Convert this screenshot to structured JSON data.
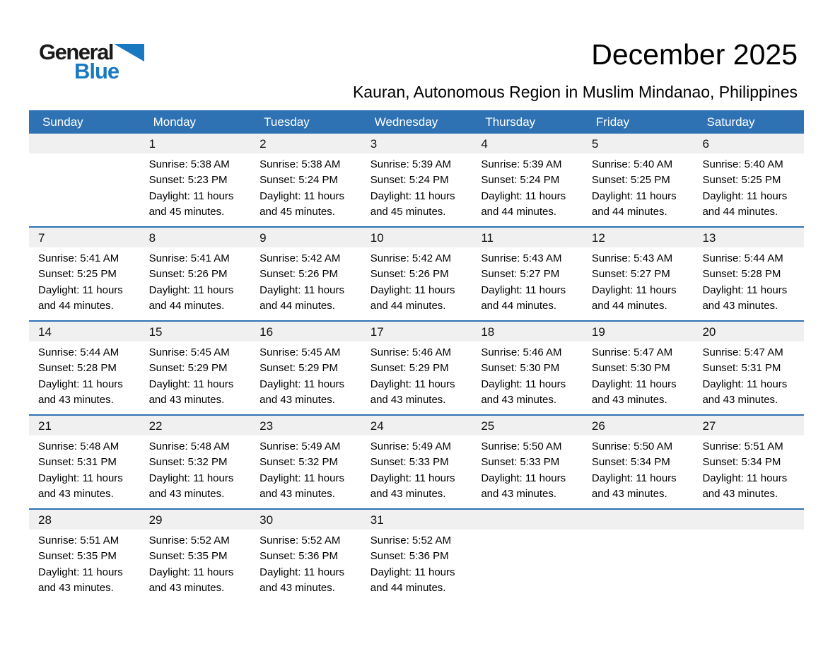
{
  "logo": {
    "text_general": "General",
    "text_blue": "Blue",
    "triangle_icon": "blue-right-triangle"
  },
  "header": {
    "title": "December 2025",
    "subtitle": "Kauran, Autonomous Region in Muslim Mindanao, Philippines"
  },
  "colors": {
    "header_blue": "#2E72B4",
    "row_separator_blue": "#2E72B4",
    "day_band_gray": "#F0F0F0",
    "logo_blue": "#1878C2",
    "logo_dark": "#1A1A1A",
    "header_text": "#FFFFFF",
    "body_text": "#000000"
  },
  "calendar": {
    "day_headers": [
      "Sunday",
      "Monday",
      "Tuesday",
      "Wednesday",
      "Thursday",
      "Friday",
      "Saturday"
    ],
    "weeks": [
      {
        "days": [
          {
            "date": "",
            "lines": []
          },
          {
            "date": "1",
            "lines": [
              "Sunrise: 5:38 AM",
              "Sunset: 5:23 PM",
              "Daylight: 11 hours",
              "and 45 minutes."
            ]
          },
          {
            "date": "2",
            "lines": [
              "Sunrise: 5:38 AM",
              "Sunset: 5:24 PM",
              "Daylight: 11 hours",
              "and 45 minutes."
            ]
          },
          {
            "date": "3",
            "lines": [
              "Sunrise: 5:39 AM",
              "Sunset: 5:24 PM",
              "Daylight: 11 hours",
              "and 45 minutes."
            ]
          },
          {
            "date": "4",
            "lines": [
              "Sunrise: 5:39 AM",
              "Sunset: 5:24 PM",
              "Daylight: 11 hours",
              "and 44 minutes."
            ]
          },
          {
            "date": "5",
            "lines": [
              "Sunrise: 5:40 AM",
              "Sunset: 5:25 PM",
              "Daylight: 11 hours",
              "and 44 minutes."
            ]
          },
          {
            "date": "6",
            "lines": [
              "Sunrise: 5:40 AM",
              "Sunset: 5:25 PM",
              "Daylight: 11 hours",
              "and 44 minutes."
            ]
          }
        ]
      },
      {
        "days": [
          {
            "date": "7",
            "lines": [
              "Sunrise: 5:41 AM",
              "Sunset: 5:25 PM",
              "Daylight: 11 hours",
              "and 44 minutes."
            ]
          },
          {
            "date": "8",
            "lines": [
              "Sunrise: 5:41 AM",
              "Sunset: 5:26 PM",
              "Daylight: 11 hours",
              "and 44 minutes."
            ]
          },
          {
            "date": "9",
            "lines": [
              "Sunrise: 5:42 AM",
              "Sunset: 5:26 PM",
              "Daylight: 11 hours",
              "and 44 minutes."
            ]
          },
          {
            "date": "10",
            "lines": [
              "Sunrise: 5:42 AM",
              "Sunset: 5:26 PM",
              "Daylight: 11 hours",
              "and 44 minutes."
            ]
          },
          {
            "date": "11",
            "lines": [
              "Sunrise: 5:43 AM",
              "Sunset: 5:27 PM",
              "Daylight: 11 hours",
              "and 44 minutes."
            ]
          },
          {
            "date": "12",
            "lines": [
              "Sunrise: 5:43 AM",
              "Sunset: 5:27 PM",
              "Daylight: 11 hours",
              "and 44 minutes."
            ]
          },
          {
            "date": "13",
            "lines": [
              "Sunrise: 5:44 AM",
              "Sunset: 5:28 PM",
              "Daylight: 11 hours",
              "and 43 minutes."
            ]
          }
        ]
      },
      {
        "days": [
          {
            "date": "14",
            "lines": [
              "Sunrise: 5:44 AM",
              "Sunset: 5:28 PM",
              "Daylight: 11 hours",
              "and 43 minutes."
            ]
          },
          {
            "date": "15",
            "lines": [
              "Sunrise: 5:45 AM",
              "Sunset: 5:29 PM",
              "Daylight: 11 hours",
              "and 43 minutes."
            ]
          },
          {
            "date": "16",
            "lines": [
              "Sunrise: 5:45 AM",
              "Sunset: 5:29 PM",
              "Daylight: 11 hours",
              "and 43 minutes."
            ]
          },
          {
            "date": "17",
            "lines": [
              "Sunrise: 5:46 AM",
              "Sunset: 5:29 PM",
              "Daylight: 11 hours",
              "and 43 minutes."
            ]
          },
          {
            "date": "18",
            "lines": [
              "Sunrise: 5:46 AM",
              "Sunset: 5:30 PM",
              "Daylight: 11 hours",
              "and 43 minutes."
            ]
          },
          {
            "date": "19",
            "lines": [
              "Sunrise: 5:47 AM",
              "Sunset: 5:30 PM",
              "Daylight: 11 hours",
              "and 43 minutes."
            ]
          },
          {
            "date": "20",
            "lines": [
              "Sunrise: 5:47 AM",
              "Sunset: 5:31 PM",
              "Daylight: 11 hours",
              "and 43 minutes."
            ]
          }
        ]
      },
      {
        "days": [
          {
            "date": "21",
            "lines": [
              "Sunrise: 5:48 AM",
              "Sunset: 5:31 PM",
              "Daylight: 11 hours",
              "and 43 minutes."
            ]
          },
          {
            "date": "22",
            "lines": [
              "Sunrise: 5:48 AM",
              "Sunset: 5:32 PM",
              "Daylight: 11 hours",
              "and 43 minutes."
            ]
          },
          {
            "date": "23",
            "lines": [
              "Sunrise: 5:49 AM",
              "Sunset: 5:32 PM",
              "Daylight: 11 hours",
              "and 43 minutes."
            ]
          },
          {
            "date": "24",
            "lines": [
              "Sunrise: 5:49 AM",
              "Sunset: 5:33 PM",
              "Daylight: 11 hours",
              "and 43 minutes."
            ]
          },
          {
            "date": "25",
            "lines": [
              "Sunrise: 5:50 AM",
              "Sunset: 5:33 PM",
              "Daylight: 11 hours",
              "and 43 minutes."
            ]
          },
          {
            "date": "26",
            "lines": [
              "Sunrise: 5:50 AM",
              "Sunset: 5:34 PM",
              "Daylight: 11 hours",
              "and 43 minutes."
            ]
          },
          {
            "date": "27",
            "lines": [
              "Sunrise: 5:51 AM",
              "Sunset: 5:34 PM",
              "Daylight: 11 hours",
              "and 43 minutes."
            ]
          }
        ]
      },
      {
        "days": [
          {
            "date": "28",
            "lines": [
              "Sunrise: 5:51 AM",
              "Sunset: 5:35 PM",
              "Daylight: 11 hours",
              "and 43 minutes."
            ]
          },
          {
            "date": "29",
            "lines": [
              "Sunrise: 5:52 AM",
              "Sunset: 5:35 PM",
              "Daylight: 11 hours",
              "and 43 minutes."
            ]
          },
          {
            "date": "30",
            "lines": [
              "Sunrise: 5:52 AM",
              "Sunset: 5:36 PM",
              "Daylight: 11 hours",
              "and 43 minutes."
            ]
          },
          {
            "date": "31",
            "lines": [
              "Sunrise: 5:52 AM",
              "Sunset: 5:36 PM",
              "Daylight: 11 hours",
              "and 44 minutes."
            ]
          },
          {
            "date": "",
            "lines": []
          },
          {
            "date": "",
            "lines": []
          },
          {
            "date": "",
            "lines": []
          }
        ]
      }
    ]
  }
}
